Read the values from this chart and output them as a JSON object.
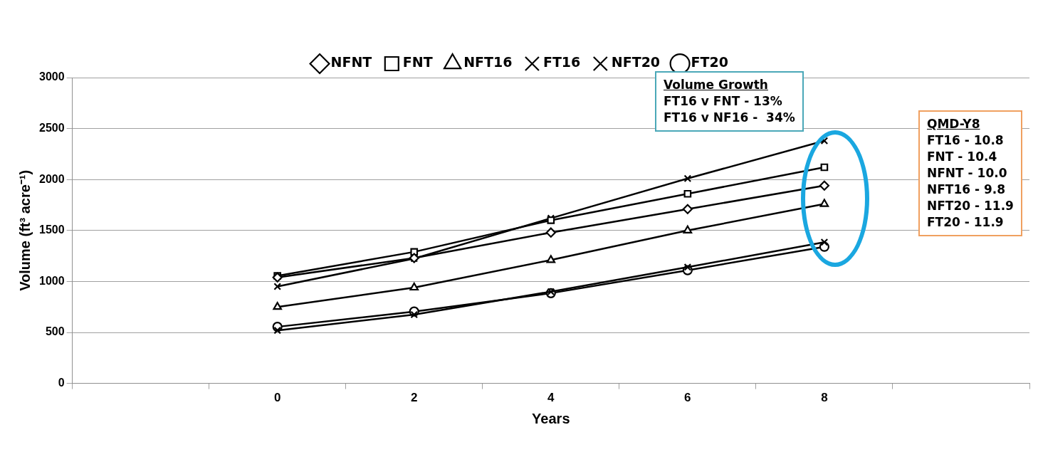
{
  "chart_data": {
    "type": "line",
    "xlabel": "Years",
    "ylabel": "Volume (ft³ acre⁻¹)",
    "categories": [
      null,
      "0",
      "2",
      "4",
      "6",
      "8",
      null
    ],
    "ylim": [
      0,
      3000
    ],
    "yticks": [
      0,
      500,
      1000,
      1500,
      2000,
      2500,
      3000
    ],
    "grid": "y",
    "legend": "top",
    "line_style": "solid",
    "series": [
      {
        "name": "NFNT",
        "color": "#000000",
        "marker": "diamond",
        "values": [
          null,
          1040,
          1230,
          1480,
          1710,
          1940,
          null
        ]
      },
      {
        "name": "FNT",
        "color": "#000000",
        "marker": "square",
        "values": [
          null,
          1055,
          1290,
          1600,
          1860,
          2120,
          null
        ]
      },
      {
        "name": "NFT16",
        "color": "#000000",
        "marker": "triangle",
        "values": [
          null,
          750,
          940,
          1210,
          1500,
          1760,
          null
        ]
      },
      {
        "name": "FT16",
        "color": "#000000",
        "marker": "cross",
        "values": [
          null,
          950,
          1225,
          1620,
          2010,
          2380,
          null
        ]
      },
      {
        "name": "NFT20",
        "color": "#000000",
        "marker": "cross",
        "values": [
          null,
          520,
          675,
          900,
          1140,
          1385,
          null
        ]
      },
      {
        "name": "FT20",
        "color": "#000000",
        "marker": "circle",
        "values": [
          null,
          555,
          705,
          885,
          1110,
          1340,
          null
        ]
      }
    ],
    "annotations": [
      "Volume Growth\nFT16 v FNT - 13%\nFT16 v NF16 -  34%",
      "QMD-Y8\nFT16 - 10.8\nFNT - 10.4\nNFNT - 10.0\nNFT16 - 9.8\nNFT20 - 11.9\nFT20 - 11.9"
    ]
  }
}
